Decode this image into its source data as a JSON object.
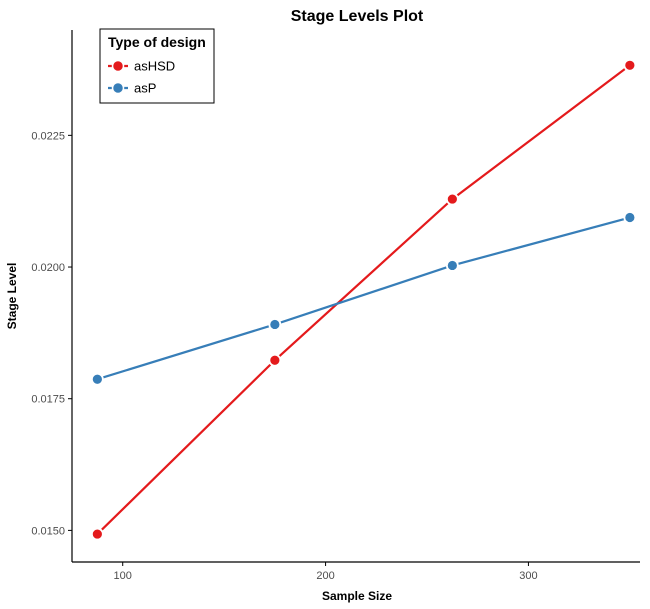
{
  "chart_data": {
    "type": "line",
    "title": "Stage Levels Plot",
    "xlabel": "Sample Size",
    "ylabel": "Stage Level",
    "xlim": [
      75,
      355
    ],
    "ylim": [
      0.0144,
      0.0245
    ],
    "x_ticks": [
      100,
      200,
      300
    ],
    "y_ticks": [
      0.015,
      0.0175,
      0.02,
      0.0225
    ],
    "x_tick_labels": [
      "100",
      "200",
      "300"
    ],
    "y_tick_labels": [
      "0.0150",
      "0.0175",
      "0.0200",
      "0.0225"
    ],
    "grid": false,
    "legend": {
      "title": "Type of design",
      "placement": "top-left"
    },
    "series": [
      {
        "name": "asHSD",
        "color": "#e41a1c",
        "x": [
          87.5,
          175,
          262.5,
          350
        ],
        "y": [
          0.01493,
          0.01823,
          0.02129,
          0.02383
        ]
      },
      {
        "name": "asP",
        "color": "#377eb8",
        "x": [
          87.5,
          175,
          262.5,
          350
        ],
        "y": [
          0.01787,
          0.01891,
          0.02003,
          0.02094
        ]
      }
    ]
  }
}
